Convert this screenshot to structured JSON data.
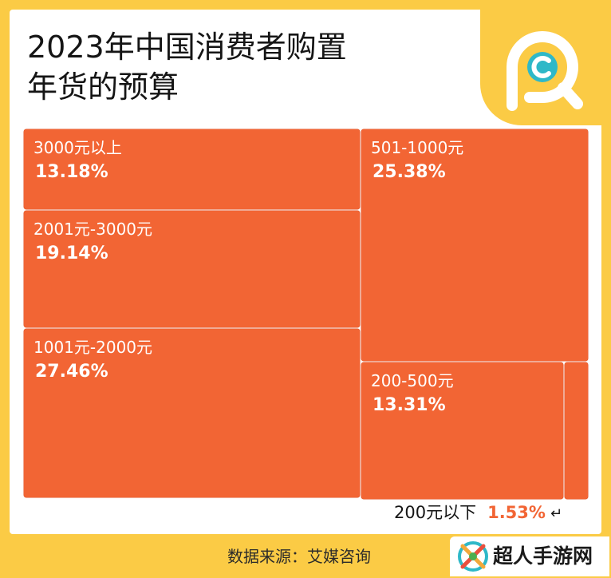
{
  "title_line1": "2023年中国消费者购置",
  "title_line2": "年货的预算",
  "source": "数据来源：艾媒咨询",
  "watermark_text": "超人手游网",
  "small_callout": {
    "label": "200元以下",
    "value": "1.53%"
  },
  "colors": {
    "background": "#FBCB45",
    "cell": "#F26534",
    "accent_teal": "#2EB8C8"
  },
  "chart_data": {
    "type": "treemap",
    "title": "2023年中国消费者购置年货的预算",
    "items": [
      {
        "label": "3000元以上",
        "value": 13.18,
        "value_text": "13.18%"
      },
      {
        "label": "2001元-3000元",
        "value": 19.14,
        "value_text": "19.14%"
      },
      {
        "label": "1001元-2000元",
        "value": 27.46,
        "value_text": "27.46%"
      },
      {
        "label": "501-1000元",
        "value": 25.38,
        "value_text": "25.38%"
      },
      {
        "label": "200-500元",
        "value": 13.31,
        "value_text": "13.31%"
      },
      {
        "label": "200元以下",
        "value": 1.53,
        "value_text": "1.53%"
      }
    ]
  }
}
